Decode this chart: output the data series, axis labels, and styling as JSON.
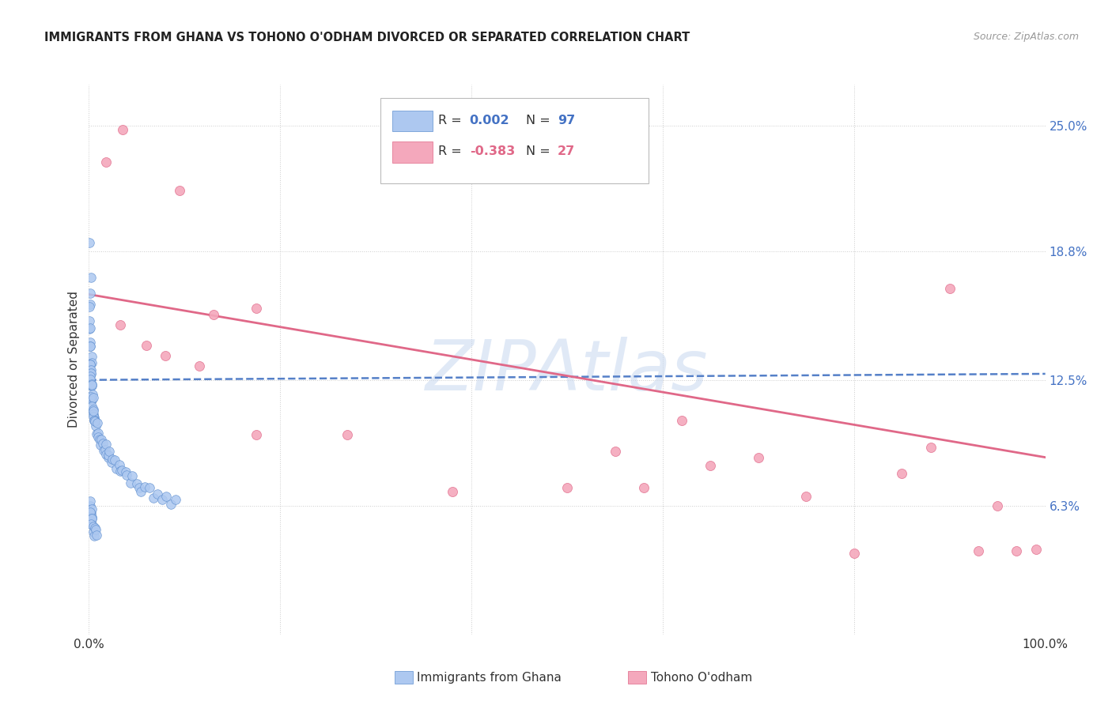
{
  "title": "IMMIGRANTS FROM GHANA VS TOHONO O'ODHAM DIVORCED OR SEPARATED CORRELATION CHART",
  "source": "Source: ZipAtlas.com",
  "ylabel": "Divorced or Separated",
  "yticks": [
    0.0,
    0.063,
    0.125,
    0.188,
    0.25
  ],
  "ytick_labels": [
    "",
    "6.3%",
    "12.5%",
    "18.8%",
    "25.0%"
  ],
  "xtick_positions": [
    0.0,
    0.2,
    0.4,
    0.6,
    0.8,
    1.0
  ],
  "xtick_labels": [
    "0.0%",
    "",
    "",
    "",
    "",
    "100.0%"
  ],
  "xlim": [
    0.0,
    1.0
  ],
  "ylim": [
    0.0,
    0.27
  ],
  "color_blue": "#adc8f0",
  "color_pink": "#f4a8bc",
  "color_blue_edge": "#6090d0",
  "color_pink_edge": "#e06888",
  "color_trend_blue": "#5580c8",
  "color_trend_pink": "#e06888",
  "watermark": "ZIPAtlas",
  "watermark_color": "#c8d8f0",
  "blue_x": [
    0.001,
    0.001,
    0.001,
    0.001,
    0.001,
    0.001,
    0.001,
    0.001,
    0.001,
    0.001,
    0.002,
    0.002,
    0.002,
    0.002,
    0.002,
    0.002,
    0.002,
    0.002,
    0.002,
    0.002,
    0.002,
    0.002,
    0.003,
    0.003,
    0.003,
    0.003,
    0.003,
    0.003,
    0.003,
    0.003,
    0.004,
    0.004,
    0.004,
    0.004,
    0.004,
    0.005,
    0.005,
    0.005,
    0.005,
    0.006,
    0.006,
    0.007,
    0.007,
    0.008,
    0.008,
    0.009,
    0.01,
    0.011,
    0.012,
    0.013,
    0.014,
    0.015,
    0.016,
    0.017,
    0.018,
    0.02,
    0.021,
    0.022,
    0.024,
    0.025,
    0.027,
    0.029,
    0.031,
    0.033,
    0.035,
    0.038,
    0.04,
    0.043,
    0.046,
    0.049,
    0.052,
    0.055,
    0.059,
    0.063,
    0.067,
    0.071,
    0.076,
    0.081,
    0.086,
    0.091,
    0.001,
    0.001,
    0.002,
    0.002,
    0.003,
    0.003,
    0.001,
    0.002,
    0.002,
    0.003,
    0.003,
    0.004,
    0.004,
    0.005,
    0.006,
    0.007,
    0.008
  ],
  "blue_y": [
    0.193,
    0.178,
    0.17,
    0.165,
    0.16,
    0.155,
    0.15,
    0.148,
    0.145,
    0.142,
    0.14,
    0.138,
    0.136,
    0.134,
    0.132,
    0.13,
    0.128,
    0.127,
    0.126,
    0.125,
    0.124,
    0.123,
    0.122,
    0.121,
    0.12,
    0.119,
    0.118,
    0.117,
    0.116,
    0.115,
    0.114,
    0.113,
    0.112,
    0.111,
    0.11,
    0.109,
    0.108,
    0.107,
    0.106,
    0.105,
    0.104,
    0.103,
    0.102,
    0.101,
    0.1,
    0.099,
    0.098,
    0.097,
    0.096,
    0.095,
    0.094,
    0.093,
    0.092,
    0.091,
    0.09,
    0.089,
    0.088,
    0.087,
    0.086,
    0.085,
    0.084,
    0.083,
    0.082,
    0.081,
    0.08,
    0.079,
    0.078,
    0.077,
    0.076,
    0.075,
    0.074,
    0.073,
    0.072,
    0.071,
    0.07,
    0.069,
    0.068,
    0.067,
    0.066,
    0.065,
    0.064,
    0.063,
    0.062,
    0.061,
    0.06,
    0.059,
    0.058,
    0.057,
    0.056,
    0.055,
    0.054,
    0.053,
    0.052,
    0.051,
    0.05,
    0.049,
    0.048
  ],
  "pink_x": [
    0.018,
    0.035,
    0.095,
    0.13,
    0.175,
    0.27,
    0.033,
    0.06,
    0.08,
    0.115,
    0.175,
    0.38,
    0.5,
    0.55,
    0.58,
    0.62,
    0.65,
    0.7,
    0.75,
    0.8,
    0.85,
    0.88,
    0.9,
    0.93,
    0.95,
    0.97,
    0.99
  ],
  "pink_y": [
    0.232,
    0.248,
    0.218,
    0.157,
    0.16,
    0.098,
    0.152,
    0.142,
    0.137,
    0.132,
    0.098,
    0.07,
    0.072,
    0.09,
    0.072,
    0.105,
    0.083,
    0.087,
    0.068,
    0.04,
    0.079,
    0.092,
    0.17,
    0.041,
    0.063,
    0.041,
    0.042
  ],
  "blue_trend_x": [
    0.0,
    1.0
  ],
  "blue_trend_y": [
    0.125,
    0.128
  ],
  "pink_trend_x": [
    0.0,
    1.0
  ],
  "pink_trend_y": [
    0.167,
    0.087
  ]
}
